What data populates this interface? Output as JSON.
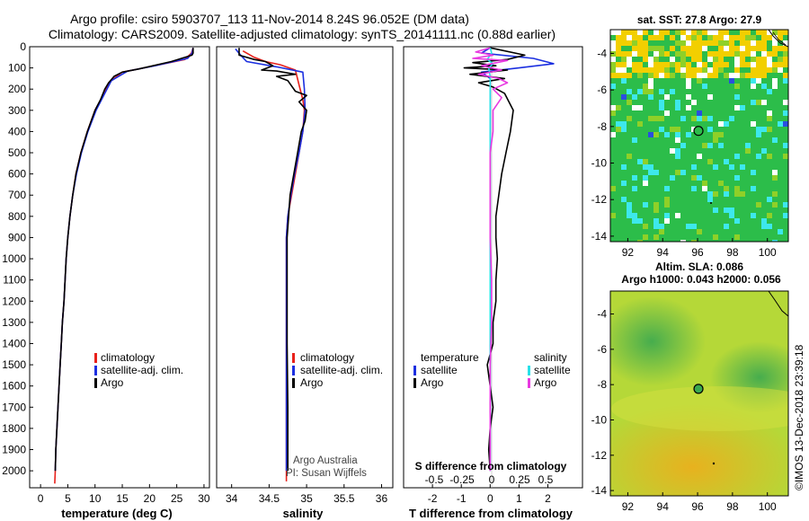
{
  "header": {
    "title_line1": "Argo profile: csiro 5903707_113 11-Nov-2014 8.24S 96.052E (DM data)",
    "title_line2": "Climatology: CARS2009. Satellite-adjusted climatology: synTS_20141111.nc (0.88d earlier)"
  },
  "credits": {
    "line1": "Argo Australia",
    "line2": "PI: Susan Wijffels",
    "footer": "©IMOS 13-Dec-2018 23:39:18"
  },
  "colors": {
    "climatology": "#e8211b",
    "satellite": "#1b2fe0",
    "argo": "#000000",
    "sal_satellite": "#29e0e8",
    "sal_argo": "#e83ae0"
  },
  "chart_data": [
    {
      "type": "line",
      "id": "temperature",
      "xlabel": "temperature (deg C)",
      "xlim": [
        -2,
        31
      ],
      "xticks": [
        0,
        5,
        10,
        15,
        20,
        25,
        30
      ],
      "ylim": [
        0,
        2080
      ],
      "yticks": [
        0,
        100,
        200,
        300,
        400,
        500,
        600,
        700,
        800,
        900,
        1000,
        1100,
        1200,
        1300,
        1400,
        1500,
        1600,
        1700,
        1800,
        1900,
        2000
      ],
      "legend": {
        "position": "lower-center",
        "entries": [
          "climatology",
          "satellite-adj. clim.",
          "Argo"
        ]
      },
      "series": [
        {
          "name": "climatology",
          "color_key": "climatology",
          "points": [
            [
              28,
              5
            ],
            [
              27.7,
              30
            ],
            [
              26.5,
              60
            ],
            [
              20,
              95
            ],
            [
              15,
              120
            ],
            [
              12.5,
              170
            ],
            [
              11.5,
              230
            ],
            [
              10,
              300
            ],
            [
              8.6,
              400
            ],
            [
              7.4,
              500
            ],
            [
              6.5,
              600
            ],
            [
              5.9,
              700
            ],
            [
              5.4,
              800
            ],
            [
              5,
              900
            ],
            [
              4.7,
              1000
            ],
            [
              4.5,
              1100
            ],
            [
              4.3,
              1200
            ],
            [
              4,
              1300
            ],
            [
              3.8,
              1400
            ],
            [
              3.6,
              1500
            ],
            [
              3.4,
              1600
            ],
            [
              3.2,
              1700
            ],
            [
              3,
              1800
            ],
            [
              2.8,
              1900
            ],
            [
              2.7,
              2000
            ],
            [
              2.6,
              2060
            ]
          ]
        },
        {
          "name": "satellite",
          "color_key": "satellite",
          "points": [
            [
              28,
              5
            ],
            [
              27.8,
              30
            ],
            [
              27,
              55
            ],
            [
              21,
              90
            ],
            [
              16,
              115
            ],
            [
              13,
              160
            ],
            [
              11.8,
              220
            ],
            [
              10.2,
              300
            ],
            [
              8.7,
              400
            ],
            [
              7.5,
              500
            ],
            [
              6.6,
              600
            ],
            [
              5.9,
              700
            ],
            [
              5.4,
              800
            ],
            [
              5,
              900
            ],
            [
              4.7,
              1000
            ],
            [
              4.5,
              1100
            ],
            [
              4.3,
              1200
            ],
            [
              4,
              1300
            ],
            [
              3.8,
              1400
            ],
            [
              3.6,
              1500
            ],
            [
              3.4,
              1600
            ],
            [
              3.2,
              1700
            ],
            [
              3,
              1800
            ],
            [
              2.8,
              1900
            ],
            [
              2.7,
              2000
            ]
          ]
        },
        {
          "name": "Argo",
          "color_key": "argo",
          "points": [
            [
              28,
              5
            ],
            [
              28,
              30
            ],
            [
              27.8,
              40
            ],
            [
              24,
              70
            ],
            [
              18,
              105
            ],
            [
              15,
              120
            ],
            [
              13.5,
              140
            ],
            [
              12.5,
              170
            ],
            [
              11.8,
              200
            ],
            [
              11,
              250
            ],
            [
              10,
              300
            ],
            [
              8.6,
              400
            ],
            [
              7.4,
              500
            ],
            [
              6.5,
              600
            ],
            [
              5.9,
              700
            ],
            [
              5.4,
              800
            ],
            [
              5,
              900
            ],
            [
              4.7,
              1000
            ],
            [
              4.5,
              1100
            ],
            [
              4.3,
              1200
            ],
            [
              4,
              1300
            ],
            [
              3.8,
              1400
            ],
            [
              3.6,
              1500
            ],
            [
              3.4,
              1600
            ],
            [
              3.2,
              1700
            ],
            [
              3,
              1800
            ],
            [
              2.8,
              1900
            ],
            [
              2.7,
              2000
            ]
          ]
        }
      ]
    },
    {
      "type": "line",
      "id": "salinity",
      "xlabel": "salinity",
      "xlim": [
        33.8,
        36.15
      ],
      "xticks": [
        34,
        34.5,
        35,
        35.5,
        36
      ],
      "ylim": [
        0,
        2080
      ],
      "legend": {
        "position": "lower-center",
        "entries": [
          "climatology",
          "satellite-adj. clim.",
          "Argo"
        ]
      },
      "series": [
        {
          "name": "climatology",
          "color_key": "climatology",
          "points": [
            [
              34.15,
              20
            ],
            [
              34.3,
              50
            ],
            [
              34.45,
              70
            ],
            [
              34.65,
              85
            ],
            [
              34.85,
              110
            ],
            [
              34.9,
              180
            ],
            [
              34.95,
              250
            ],
            [
              34.97,
              300
            ],
            [
              34.95,
              400
            ],
            [
              34.9,
              500
            ],
            [
              34.85,
              600
            ],
            [
              34.8,
              700
            ],
            [
              34.75,
              800
            ],
            [
              34.73,
              900
            ],
            [
              34.73,
              1000
            ],
            [
              34.73,
              1200
            ],
            [
              34.73,
              1400
            ],
            [
              34.73,
              1600
            ],
            [
              34.73,
              1800
            ],
            [
              34.73,
              2000
            ],
            [
              34.73,
              2050
            ]
          ]
        },
        {
          "name": "satellite",
          "color_key": "satellite",
          "points": [
            [
              34.05,
              10
            ],
            [
              34.12,
              40
            ],
            [
              34.2,
              70
            ],
            [
              34.6,
              95
            ],
            [
              34.95,
              120
            ],
            [
              34.97,
              200
            ],
            [
              34.98,
              300
            ],
            [
              34.95,
              400
            ],
            [
              34.9,
              500
            ],
            [
              34.84,
              600
            ],
            [
              34.79,
              700
            ],
            [
              34.75,
              800
            ],
            [
              34.73,
              900
            ],
            [
              34.73,
              1100
            ],
            [
              34.73,
              1400
            ],
            [
              34.73,
              1700
            ],
            [
              34.73,
              2000
            ]
          ]
        },
        {
          "name": "Argo",
          "color_key": "argo",
          "points": [
            [
              34.1,
              5
            ],
            [
              34.1,
              40
            ],
            [
              34.3,
              60
            ],
            [
              34.45,
              70
            ],
            [
              34.55,
              90
            ],
            [
              34.4,
              110
            ],
            [
              34.6,
              115
            ],
            [
              34.85,
              130
            ],
            [
              34.6,
              140
            ],
            [
              34.75,
              160
            ],
            [
              34.85,
              210
            ],
            [
              35,
              230
            ],
            [
              34.9,
              260
            ],
            [
              35,
              300
            ],
            [
              34.98,
              350
            ],
            [
              34.93,
              400
            ],
            [
              34.88,
              500
            ],
            [
              34.83,
              600
            ],
            [
              34.78,
              700
            ],
            [
              34.76,
              800
            ],
            [
              34.74,
              900
            ],
            [
              34.74,
              1100
            ],
            [
              34.74,
              1400
            ],
            [
              34.75,
              1700
            ],
            [
              34.75,
              2000
            ]
          ]
        }
      ]
    },
    {
      "type": "line",
      "id": "difference",
      "xlabel": "T difference from climatology",
      "xlabel_top": "S difference from climatology",
      "xlim": [
        -3,
        3.2
      ],
      "xticks": [
        -2,
        -1,
        0,
        1,
        2
      ],
      "xticks_top": [
        "-0.5",
        "-0.25",
        "0",
        "0.25",
        "0.5"
      ],
      "ylim": [
        0,
        2080
      ],
      "legend": {
        "position": "lower",
        "left_title": "temperature",
        "right_title": "salinity",
        "entries": [
          "satellite",
          "Argo"
        ]
      },
      "series": [
        {
          "name": "temperature satellite",
          "color_key": "satellite",
          "points": [
            [
              0,
              5
            ],
            [
              -0.3,
              30
            ],
            [
              1.5,
              55
            ],
            [
              2.2,
              80
            ],
            [
              1,
              100
            ],
            [
              -0.3,
              120
            ],
            [
              0,
              150
            ],
            [
              0,
              200
            ],
            [
              0,
              300
            ],
            [
              0,
              500
            ],
            [
              0,
              1000
            ],
            [
              0,
              1500
            ],
            [
              0,
              2000
            ]
          ]
        },
        {
          "name": "temperature Argo",
          "color_key": "argo",
          "points": [
            [
              0,
              5
            ],
            [
              1.2,
              40
            ],
            [
              0.6,
              60
            ],
            [
              -0.6,
              75
            ],
            [
              0.2,
              90
            ],
            [
              -0.9,
              100
            ],
            [
              0.6,
              110
            ],
            [
              -0.7,
              130
            ],
            [
              0.5,
              150
            ],
            [
              -0.4,
              170
            ],
            [
              0.1,
              190
            ],
            [
              0.5,
              220
            ],
            [
              0.8,
              300
            ],
            [
              0.7,
              400
            ],
            [
              0.55,
              500
            ],
            [
              0.4,
              600
            ],
            [
              0.3,
              700
            ],
            [
              0.2,
              800
            ],
            [
              0.2,
              900
            ],
            [
              0.25,
              1000
            ],
            [
              0.2,
              1100
            ],
            [
              0.2,
              1200
            ],
            [
              0.1,
              1300
            ],
            [
              0.1,
              1400
            ],
            [
              -0.1,
              1500
            ],
            [
              0,
              1600
            ],
            [
              0.1,
              1700
            ],
            [
              0,
              1800
            ],
            [
              -0.05,
              1900
            ],
            [
              0,
              2000
            ]
          ]
        },
        {
          "name": "salinity satellite",
          "color_key": "sal_satellite",
          "points": [
            [
              0,
              5
            ],
            [
              0.05,
              30
            ],
            [
              -0.1,
              60
            ],
            [
              0.1,
              80
            ],
            [
              -0.05,
              100
            ],
            [
              0,
              140
            ],
            [
              0,
              300
            ],
            [
              0,
              500
            ],
            [
              0,
              1000
            ],
            [
              0,
              1500
            ],
            [
              0,
              2000
            ]
          ]
        },
        {
          "name": "salinity Argo",
          "color_key": "sal_argo",
          "points": [
            [
              0,
              5
            ],
            [
              -0.5,
              25
            ],
            [
              0.1,
              40
            ],
            [
              -0.6,
              55
            ],
            [
              0.6,
              65
            ],
            [
              -0.3,
              90
            ],
            [
              0.4,
              110
            ],
            [
              -0.4,
              130
            ],
            [
              0.3,
              150
            ],
            [
              0.6,
              170
            ],
            [
              0.1,
              200
            ],
            [
              0.4,
              240
            ],
            [
              0.1,
              300
            ],
            [
              0.1,
              400
            ],
            [
              0,
              500
            ],
            [
              0,
              700
            ],
            [
              0,
              900
            ],
            [
              0.05,
              1100
            ],
            [
              0.05,
              1300
            ],
            [
              0,
              1500
            ],
            [
              0,
              1800
            ],
            [
              0,
              2000
            ]
          ]
        }
      ]
    },
    {
      "type": "heatmap",
      "id": "sst_map",
      "title": "sat. SST: 27.8 Argo: 27.9",
      "xlim": [
        91,
        101.2
      ],
      "ylim": [
        -14.3,
        -2.7
      ],
      "xticks": [
        92,
        94,
        96,
        98,
        100
      ],
      "yticks": [
        -4,
        -6,
        -8,
        -10,
        -12,
        -14
      ],
      "marker": {
        "lon": 96.05,
        "lat": -8.24
      },
      "legend_colors": {
        "water": "#2cbd4a",
        "warm": "#f2cf00",
        "hot": "#8fd028",
        "cool": "#3de8ec",
        "coldest": "#2a4ee0"
      }
    },
    {
      "type": "heatmap",
      "id": "sla_map",
      "title1": "Altim. SLA: 0.086",
      "title2": "Argo h1000: 0.043 h2000: 0.056",
      "xlim": [
        91,
        101.2
      ],
      "ylim": [
        -14.3,
        -2.7
      ],
      "xticks": [
        92,
        94,
        96,
        98,
        100
      ],
      "yticks": [
        -4,
        -6,
        -8,
        -10,
        -12,
        -14
      ],
      "marker": {
        "lon": 96.05,
        "lat": -8.24
      }
    }
  ]
}
